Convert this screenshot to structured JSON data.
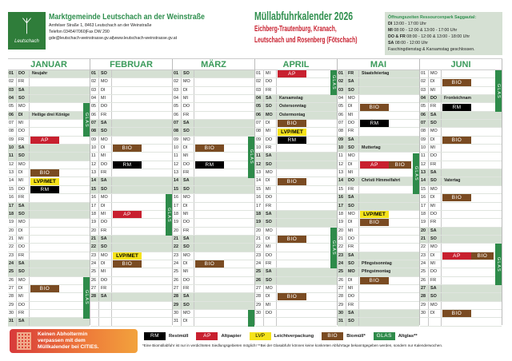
{
  "header": {
    "logo_text": "Leutschach",
    "org_name": "Marktgemeinde Leutschach an der Weinstraße",
    "address": "Arnfelser Straße 1, 8463 Leutschach an der Weinstraße",
    "phone": "Telefon 03454/7060|Fax DW 290",
    "web": "gde@leutschach-weinstrasse.gv.at|www.leutschach-weinstrasse.gv.at",
    "title": "Müllabfuhrkalender 2026",
    "subtitle1": "Eichberg-Trautenburg, Kranach,",
    "subtitle2": "Leutschach und Rosenberg (Fötschach)"
  },
  "hours": {
    "title": "Öffnungszeiten Ressourcenpark Saggautal:",
    "lines": [
      {
        "day": "DI",
        "time": " 13:00 - 17:00 Uhr"
      },
      {
        "day": "MI",
        "time": " 08:00 - 12:00 & 13:00 - 17:00 Uhr"
      },
      {
        "day": "DO & FR",
        "time": " 08:00 - 12:00 & 13:00 - 18:00 Uhr"
      },
      {
        "day": "SA",
        "time": " 08:00 - 12:00 Uhr"
      },
      {
        "day": "",
        "time": "Faschingdienstag & Karsamstag geschlossen."
      }
    ]
  },
  "colors": {
    "RM": "#000000",
    "AP": "#c8202f",
    "LVP": "#f5e31a",
    "BIO": "#7a4b22",
    "GLAS": "#2e8b4a",
    "weekend": "#d5e0d3",
    "accent": "#2f8f4e"
  },
  "glas_label": "GLAS",
  "months": [
    {
      "name": "JANUAR",
      "weekdays": [
        "DO",
        "FR",
        "SA",
        "SO",
        "MO",
        "DI",
        "MI",
        "DO",
        "FR",
        "SA",
        "SO",
        "MO",
        "DI",
        "MI",
        "DO",
        "FR",
        "SA",
        "SO",
        "MO",
        "DI",
        "MI",
        "DO",
        "FR",
        "SA",
        "SO",
        "MO",
        "DI",
        "MI",
        "DO",
        "FR",
        "SA"
      ],
      "labels": {
        "01": "Neujahr",
        "06": "Heilige drei Könige"
      },
      "pickups": {
        "09": [
          "AP"
        ],
        "13": [
          "BIO"
        ],
        "14": [
          "LVP/MET"
        ],
        "15": [
          "RM"
        ],
        "27": [
          "BIO"
        ]
      },
      "glas": [
        [
          5,
          8
        ],
        [
          26,
          30
        ]
      ]
    },
    {
      "name": "FEBRUAR",
      "weekdays": [
        "SO",
        "MO",
        "DI",
        "MI",
        "DO",
        "FR",
        "SA",
        "SO",
        "MO",
        "DI",
        "MI",
        "DO",
        "FR",
        "SA",
        "SO",
        "MO",
        "DI",
        "MI",
        "DO",
        "FR",
        "SA",
        "SO",
        "MO",
        "DI",
        "MI",
        "DO",
        "FR",
        "SA"
      ],
      "labels": {},
      "pickups": {
        "10": [
          "BIO"
        ],
        "12": [
          "RM"
        ],
        "18": [
          "AP"
        ],
        "23": [
          "LVP/MET"
        ],
        "24": [
          "BIO"
        ]
      },
      "glas": [
        [
          16,
          20
        ]
      ]
    },
    {
      "name": "MÄRZ",
      "weekdays": [
        "SO",
        "MO",
        "DI",
        "MI",
        "DO",
        "FR",
        "SA",
        "SO",
        "MO",
        "DI",
        "MI",
        "DO",
        "FR",
        "SA",
        "SO",
        "MO",
        "DI",
        "MI",
        "DO",
        "FR",
        "SA",
        "SO",
        "MO",
        "DI",
        "MI",
        "DO",
        "FR",
        "SA",
        "SO",
        "MO",
        "DI"
      ],
      "labels": {},
      "pickups": {
        "10": [
          "BIO"
        ],
        "12": [
          "RM"
        ],
        "24": [
          "BIO"
        ]
      },
      "glas": [
        [
          9,
          13
        ],
        [
          30,
          31
        ]
      ]
    },
    {
      "name": "APRIL",
      "weekdays": [
        "MI",
        "DO",
        "FR",
        "SA",
        "SO",
        "MO",
        "DI",
        "MI",
        "DO",
        "FR",
        "SA",
        "SO",
        "MO",
        "DI",
        "MI",
        "DO",
        "FR",
        "SA",
        "SO",
        "MO",
        "DI",
        "MI",
        "DO",
        "FR",
        "SA",
        "SO",
        "MO",
        "DI",
        "MI",
        "DO"
      ],
      "labels": {
        "04": "Karsamstag",
        "05": "Ostersonntag",
        "06": "Ostermontag"
      },
      "pickups": {
        "01": [
          "AP"
        ],
        "07": [
          "BIO"
        ],
        "08": [
          "LVP/MET"
        ],
        "09": [
          "RM"
        ],
        "14": [
          "BIO"
        ],
        "21": [
          "BIO"
        ],
        "28": [
          "BIO"
        ]
      },
      "glas": [
        [
          1,
          3
        ],
        [
          20,
          24
        ]
      ]
    },
    {
      "name": "MAI",
      "weekdays": [
        "FR",
        "SA",
        "SO",
        "MO",
        "DI",
        "MI",
        "DO",
        "FR",
        "SA",
        "SO",
        "MO",
        "DI",
        "MI",
        "DO",
        "FR",
        "SA",
        "SO",
        "MO",
        "DI",
        "MI",
        "DO",
        "FR",
        "SA",
        "SO",
        "MO",
        "DI",
        "MI",
        "DO",
        "FR",
        "SA",
        "SO"
      ],
      "labels": {
        "01": "Staatsfeiertag",
        "10": "Muttertag",
        "14": "Christi Himmelfahrt",
        "24": "Pfingstsonntag",
        "25": "Pfingstmontag"
      },
      "pickups": {
        "05": [
          "BIO"
        ],
        "07": [
          "RM"
        ],
        "12": [
          "AP",
          "BIO"
        ],
        "18": [
          "LVP/MET"
        ],
        "19": [
          "BIO"
        ],
        "26": [
          "BIO"
        ]
      },
      "glas": [
        [
          11,
          15
        ]
      ]
    },
    {
      "name": "JUNI",
      "weekdays": [
        "MO",
        "DI",
        "MI",
        "DO",
        "FR",
        "SA",
        "SO",
        "MO",
        "DI",
        "MI",
        "DO",
        "FR",
        "SA",
        "SO",
        "MO",
        "DI",
        "MI",
        "DO",
        "FR",
        "SA",
        "SO",
        "MO",
        "DI",
        "MI",
        "DO",
        "FR",
        "SA",
        "SO",
        "MO",
        "DI"
      ],
      "labels": {
        "04": "Fronleichnam",
        "14": "Vatertag"
      },
      "pickups": {
        "02": [
          "BIO"
        ],
        "05": [
          "RM"
        ],
        "09": [
          "BIO"
        ],
        "16": [
          "BIO"
        ],
        "23": [
          "AP",
          "BIO"
        ],
        "30": [
          "BIO"
        ]
      },
      "glas": [
        [
          1,
          5
        ],
        [
          22,
          26
        ]
      ]
    }
  ],
  "banner": {
    "line1": "Keinen Abholtermin",
    "line2": "verpassen mit dem",
    "line3": "Müllkalender bei CITIES."
  },
  "legend": [
    {
      "code": "RM",
      "label": "Restmüll"
    },
    {
      "code": "AP",
      "label": "Altpapier"
    },
    {
      "code": "LVP",
      "label": "Leichtverpackung"
    },
    {
      "code": "BIO",
      "label": "Biomüll*"
    },
    {
      "code": "GLAS",
      "label": "Altglas**"
    }
  ],
  "footnote": "*Eine Biomüllabfuhr ist nur in verdichteten Siedlungsgebieten möglich! **Bei der Glasabfuhr können keine konkreten Abfuhrtage bekanntgegeben werden, sondern nur Kalenderwochen."
}
